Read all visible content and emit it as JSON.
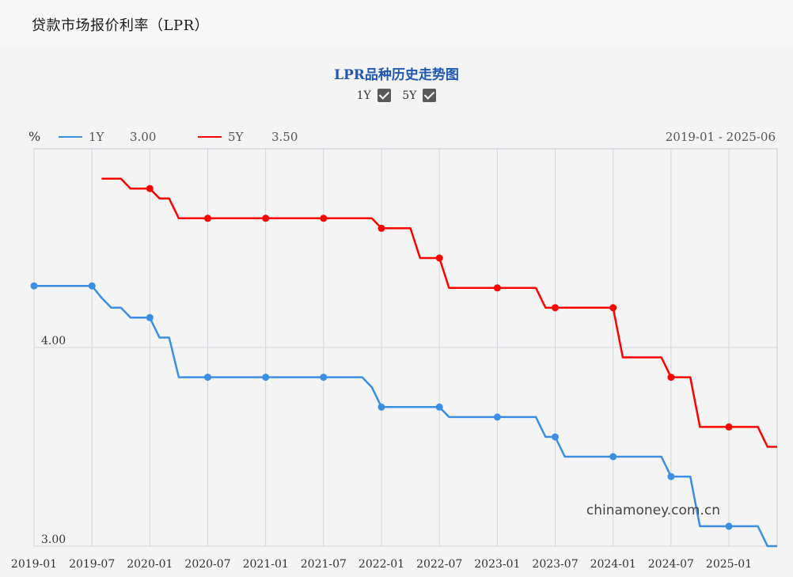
{
  "page": {
    "title": "贷款市场报价利率（LPR）"
  },
  "chart_controls": {
    "title": "LPR品种历史走势图",
    "toggles": [
      {
        "label": "1Y",
        "checked": true
      },
      {
        "label": "5Y",
        "checked": true
      }
    ]
  },
  "chart_data": {
    "type": "line",
    "title": "LPR品种历史走势图",
    "ylabel": "%",
    "date_range": "2019-01 - 2025-06",
    "ylim": [
      3.0,
      5.0
    ],
    "yticks": [
      {
        "value": 3.0,
        "label": "3.00"
      },
      {
        "value": 4.0,
        "label": "4.00"
      }
    ],
    "grid": true,
    "legend_position": "top-left",
    "x_tick_labels": [
      "2019-01",
      "2019-07",
      "2020-01",
      "2020-07",
      "2021-01",
      "2021-07",
      "2022-01",
      "2022-07",
      "2023-01",
      "2023-07",
      "2024-01",
      "2024-07",
      "2025-01"
    ],
    "series": [
      {
        "name": "1Y",
        "legend_value": "3.00",
        "color": "#3b8ee3",
        "points": [
          [
            "2019-01",
            4.31
          ],
          [
            "2019-07",
            4.31
          ],
          [
            "2019-08",
            4.25
          ],
          [
            "2019-09",
            4.2
          ],
          [
            "2019-10",
            4.2
          ],
          [
            "2019-11",
            4.15
          ],
          [
            "2020-01",
            4.15
          ],
          [
            "2020-02",
            4.05
          ],
          [
            "2020-03",
            4.05
          ],
          [
            "2020-04",
            3.85
          ],
          [
            "2021-11",
            3.85
          ],
          [
            "2021-12",
            3.8
          ],
          [
            "2022-01",
            3.7
          ],
          [
            "2022-07",
            3.7
          ],
          [
            "2022-08",
            3.65
          ],
          [
            "2023-05",
            3.65
          ],
          [
            "2023-06",
            3.55
          ],
          [
            "2023-07",
            3.55
          ],
          [
            "2023-08",
            3.45
          ],
          [
            "2024-06",
            3.45
          ],
          [
            "2024-07",
            3.35
          ],
          [
            "2024-09",
            3.35
          ],
          [
            "2024-10",
            3.1
          ],
          [
            "2025-04",
            3.1
          ],
          [
            "2025-05",
            3.0
          ],
          [
            "2025-06",
            3.0
          ]
        ],
        "markers": [
          [
            "2019-01",
            4.31
          ],
          [
            "2019-07",
            4.31
          ],
          [
            "2020-01",
            4.15
          ],
          [
            "2020-07",
            3.85
          ],
          [
            "2021-01",
            3.85
          ],
          [
            "2021-07",
            3.85
          ],
          [
            "2022-01",
            3.7
          ],
          [
            "2022-07",
            3.7
          ],
          [
            "2023-01",
            3.65
          ],
          [
            "2023-07",
            3.55
          ],
          [
            "2024-01",
            3.45
          ],
          [
            "2024-07",
            3.35
          ],
          [
            "2025-01",
            3.1
          ]
        ]
      },
      {
        "name": "5Y",
        "legend_value": "3.50",
        "color": "#ff0000",
        "points": [
          [
            "2019-08",
            4.85
          ],
          [
            "2019-10",
            4.85
          ],
          [
            "2019-11",
            4.8
          ],
          [
            "2020-01",
            4.8
          ],
          [
            "2020-02",
            4.75
          ],
          [
            "2020-03",
            4.75
          ],
          [
            "2020-04",
            4.65
          ],
          [
            "2021-12",
            4.65
          ],
          [
            "2022-01",
            4.6
          ],
          [
            "2022-04",
            4.6
          ],
          [
            "2022-05",
            4.45
          ],
          [
            "2022-07",
            4.45
          ],
          [
            "2022-08",
            4.3
          ],
          [
            "2023-05",
            4.3
          ],
          [
            "2023-06",
            4.2
          ],
          [
            "2024-01",
            4.2
          ],
          [
            "2024-02",
            3.95
          ],
          [
            "2024-06",
            3.95
          ],
          [
            "2024-07",
            3.85
          ],
          [
            "2024-09",
            3.85
          ],
          [
            "2024-10",
            3.6
          ],
          [
            "2025-04",
            3.6
          ],
          [
            "2025-05",
            3.5
          ],
          [
            "2025-06",
            3.5
          ]
        ],
        "markers": [
          [
            "2020-01",
            4.8
          ],
          [
            "2020-07",
            4.65
          ],
          [
            "2021-01",
            4.65
          ],
          [
            "2021-07",
            4.65
          ],
          [
            "2022-01",
            4.6
          ],
          [
            "2022-07",
            4.45
          ],
          [
            "2023-01",
            4.3
          ],
          [
            "2023-07",
            4.2
          ],
          [
            "2024-01",
            4.2
          ],
          [
            "2024-07",
            3.85
          ],
          [
            "2025-01",
            3.6
          ]
        ]
      }
    ],
    "annotations": [
      {
        "text": "chinamoney.com.cn",
        "position": "bottom-right"
      }
    ]
  }
}
